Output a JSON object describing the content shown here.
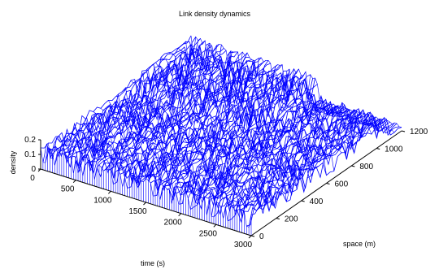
{
  "chart_data": {
    "type": "surface",
    "title": "Link density dynamics",
    "xlabel": "time (s)",
    "ylabel": "space (m)",
    "zlabel": "density",
    "x_ticks": [
      0,
      500,
      1000,
      1500,
      2000,
      2500,
      3000
    ],
    "y_ticks": [
      0,
      200,
      400,
      600,
      800,
      1000,
      1200
    ],
    "z_ticks": [
      0,
      0.1,
      0.2
    ],
    "xlim": [
      0,
      3000
    ],
    "ylim": [
      0,
      1200
    ],
    "zlim": [
      0,
      0.2
    ],
    "color": "#0000ff",
    "grid": false,
    "series_description_visible_only": true
  }
}
